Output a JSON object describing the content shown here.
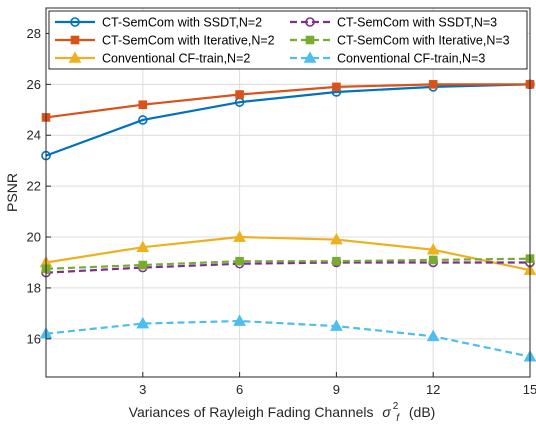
{
  "chart_data": {
    "type": "line",
    "xlabel": "Variances of Rayleigh Fading Channels",
    "xlabel_symbol": "σ",
    "xlabel_sub": "f",
    "xlabel_sup": "2",
    "xlabel_unit": "(dB)",
    "ylabel": "PSNR",
    "xlim": [
      0,
      15
    ],
    "ylim": [
      14.5,
      29
    ],
    "xticks": [
      3,
      6,
      9,
      12,
      15
    ],
    "yticks": [
      16,
      18,
      20,
      22,
      24,
      26,
      28
    ],
    "x": [
      0,
      3,
      6,
      9,
      12,
      15
    ],
    "grid": true,
    "legend_position": "top, two columns",
    "series": [
      {
        "name": "CT-SemCom with SSDT,N=2",
        "values": [
          23.2,
          24.6,
          25.3,
          25.7,
          25.9,
          26.0
        ],
        "color": "#0072BD",
        "marker": "circle",
        "dash": "solid"
      },
      {
        "name": "CT-SemCom with Iterative,N=2",
        "values": [
          24.7,
          25.2,
          25.6,
          25.9,
          26.0,
          26.0
        ],
        "color": "#D95319",
        "marker": "square",
        "dash": "solid"
      },
      {
        "name": "Conventional CF-train,N=2",
        "values": [
          19.0,
          19.6,
          20.0,
          19.9,
          19.5,
          18.7
        ],
        "color": "#EDB120",
        "marker": "triangle",
        "dash": "solid"
      },
      {
        "name": "CT-SemCom with SSDT,N=3",
        "values": [
          18.6,
          18.8,
          18.95,
          19.0,
          19.0,
          19.0
        ],
        "color": "#7E2F8E",
        "marker": "circle",
        "dash": "dashed"
      },
      {
        "name": "CT-SemCom with Iterative,N=3",
        "values": [
          18.75,
          18.9,
          19.05,
          19.05,
          19.1,
          19.15
        ],
        "color": "#77AC30",
        "marker": "square",
        "dash": "dashed"
      },
      {
        "name": "Conventional CF-train,N=3",
        "values": [
          16.2,
          16.6,
          16.7,
          16.5,
          16.1,
          15.3
        ],
        "color": "#4DBEEE",
        "marker": "triangle",
        "dash": "dashed"
      }
    ]
  }
}
